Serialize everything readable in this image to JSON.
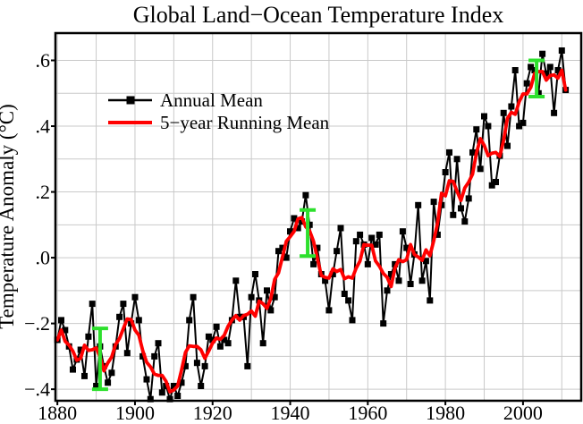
{
  "title": "Global Land−Ocean Temperature Index",
  "legend": {
    "annual": "Annual Mean",
    "running": "5−year Running Mean"
  },
  "y_axis": {
    "label": "Temperature Anomaly (°C)",
    "tick_labels": [
      ".6",
      ".4",
      ".2",
      ".0",
      "−.2",
      "−.4"
    ],
    "tick_values": [
      0.6,
      0.4,
      0.2,
      0.0,
      -0.2,
      -0.4
    ],
    "grid_step": 0.1,
    "min": -0.435,
    "max": 0.683
  },
  "x_axis": {
    "tick_labels": [
      "1880",
      "1900",
      "1920",
      "1940",
      "1960",
      "1980",
      "2000"
    ],
    "tick_values": [
      1880,
      1900,
      1920,
      1940,
      1960,
      1980,
      2000
    ],
    "grid_step": 10,
    "min": 1879.5,
    "max": 2015.0
  },
  "colors": {
    "annual": "#000000",
    "running": "#ff0000",
    "uncertainty": "#2de02d",
    "grid": "#c9c9c9",
    "frame": "#000000",
    "background": "#ffffff"
  },
  "chart_data": {
    "type": "line",
    "title": "Global Land−Ocean Temperature Index",
    "xlabel": "",
    "ylabel": "Temperature Anomaly (°C)",
    "grid": "on",
    "legend_position": "upper-left",
    "xlim": [
      1879.5,
      2015.0
    ],
    "ylim": [
      -0.435,
      0.683
    ],
    "x_start": 1880,
    "x_end": 2011,
    "x_step": 1,
    "series": [
      {
        "name": "Annual Mean",
        "color": "#000000",
        "marker": "square",
        "values": [
          -0.25,
          -0.19,
          -0.22,
          -0.27,
          -0.34,
          -0.31,
          -0.28,
          -0.36,
          -0.24,
          -0.14,
          -0.39,
          -0.27,
          -0.33,
          -0.38,
          -0.35,
          -0.27,
          -0.18,
          -0.14,
          -0.29,
          -0.2,
          -0.12,
          -0.19,
          -0.3,
          -0.37,
          -0.43,
          -0.3,
          -0.26,
          -0.41,
          -0.39,
          -0.43,
          -0.39,
          -0.42,
          -0.38,
          -0.33,
          -0.19,
          -0.12,
          -0.32,
          -0.39,
          -0.33,
          -0.24,
          -0.25,
          -0.21,
          -0.27,
          -0.25,
          -0.26,
          -0.19,
          -0.07,
          -0.18,
          -0.18,
          -0.33,
          -0.12,
          -0.05,
          -0.13,
          -0.26,
          -0.1,
          -0.16,
          -0.12,
          0.02,
          0.03,
          0.0,
          0.08,
          0.12,
          0.09,
          0.11,
          0.19,
          0.1,
          -0.02,
          0.03,
          -0.05,
          -0.07,
          -0.16,
          -0.05,
          0.02,
          0.09,
          -0.11,
          -0.13,
          -0.19,
          0.05,
          0.07,
          0.04,
          -0.02,
          0.06,
          0.04,
          0.07,
          -0.2,
          -0.1,
          -0.05,
          -0.02,
          -0.07,
          0.08,
          0.03,
          -0.08,
          0.01,
          0.16,
          -0.07,
          -0.01,
          -0.13,
          0.17,
          0.07,
          0.16,
          0.26,
          0.32,
          0.13,
          0.3,
          0.15,
          0.11,
          0.18,
          0.32,
          0.39,
          0.27,
          0.43,
          0.4,
          0.22,
          0.23,
          0.31,
          0.44,
          0.34,
          0.46,
          0.57,
          0.4,
          0.41,
          0.53,
          0.58,
          0.57,
          0.5,
          0.62,
          0.56,
          0.58,
          0.44,
          0.57,
          0.63,
          0.51
        ]
      },
      {
        "name": "5−year Running Mean",
        "color": "#ff0000",
        "marker": "none",
        "derived": "centered 5-year running mean of Annual Mean (shrinking window at ends)"
      }
    ],
    "uncertainty_bars": {
      "color": "#2de02d",
      "items": [
        {
          "year": 1891,
          "from": -0.4,
          "to": -0.215
        },
        {
          "year": 1944.5,
          "from": 0.005,
          "to": 0.145
        },
        {
          "year": 2003.5,
          "from": 0.49,
          "to": 0.6
        }
      ]
    }
  }
}
